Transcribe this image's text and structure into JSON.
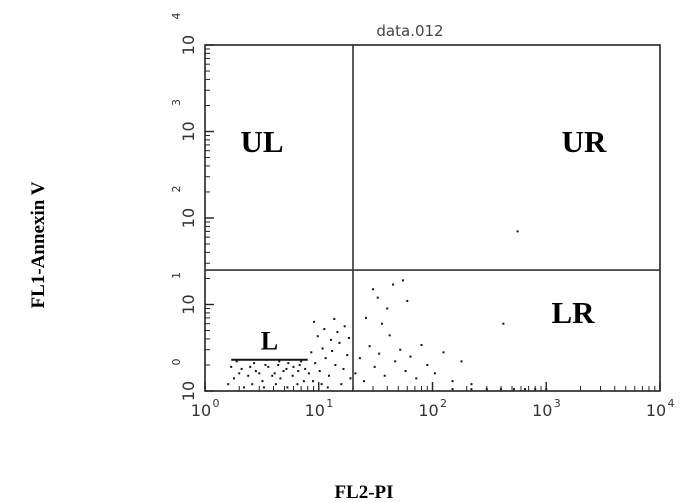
{
  "chart_data": {
    "type": "scatter",
    "title": "data.012",
    "xlabel": "FL2-PI",
    "ylabel": "FL1-Annexin V",
    "xscale": "log",
    "yscale": "log",
    "xlim": [
      1,
      10000
    ],
    "ylim": [
      1,
      10000
    ],
    "xticks": [
      {
        "base": "10",
        "exp": "0",
        "value": 1
      },
      {
        "base": "10",
        "exp": "1",
        "value": 10
      },
      {
        "base": "10",
        "exp": "2",
        "value": 100
      },
      {
        "base": "10",
        "exp": "3",
        "value": 1000
      },
      {
        "base": "10",
        "exp": "4",
        "value": 10000
      }
    ],
    "yticks": [
      {
        "base": "10",
        "exp": "0",
        "value": 1
      },
      {
        "base": "10",
        "exp": "1",
        "value": 10
      },
      {
        "base": "10",
        "exp": "2",
        "value": 100
      },
      {
        "base": "10",
        "exp": "3",
        "value": 1000
      },
      {
        "base": "10",
        "exp": "4",
        "value": 10000
      }
    ],
    "quadrant_divider": {
      "x": 20,
      "y": 25
    },
    "quadrant_labels": [
      "UL",
      "UR",
      "LR"
    ],
    "gate": {
      "label": "L",
      "x_range": [
        1.7,
        8
      ],
      "y_range": [
        2.3,
        13
      ]
    },
    "points": [
      {
        "x": 1.8,
        "y": 1.4
      },
      {
        "x": 2.1,
        "y": 1.8
      },
      {
        "x": 2.4,
        "y": 1.5
      },
      {
        "x": 2.8,
        "y": 1.7
      },
      {
        "x": 3.2,
        "y": 1.3
      },
      {
        "x": 3.6,
        "y": 1.9
      },
      {
        "x": 4.1,
        "y": 1.6
      },
      {
        "x": 4.6,
        "y": 1.4
      },
      {
        "x": 5.2,
        "y": 1.8
      },
      {
        "x": 5.9,
        "y": 1.5
      },
      {
        "x": 6.6,
        "y": 1.7
      },
      {
        "x": 7.4,
        "y": 1.3
      },
      {
        "x": 1.9,
        "y": 2.2
      },
      {
        "x": 2.3,
        "y": 2.5
      },
      {
        "x": 2.7,
        "y": 2.1
      },
      {
        "x": 3.1,
        "y": 2.6
      },
      {
        "x": 3.5,
        "y": 2.3
      },
      {
        "x": 4.0,
        "y": 2.4
      },
      {
        "x": 4.5,
        "y": 2.2
      },
      {
        "x": 5.0,
        "y": 2.6
      },
      {
        "x": 5.6,
        "y": 2.3
      },
      {
        "x": 6.3,
        "y": 2.5
      },
      {
        "x": 7.0,
        "y": 2.2
      },
      {
        "x": 7.8,
        "y": 2.4
      },
      {
        "x": 2.0,
        "y": 1.6
      },
      {
        "x": 2.5,
        "y": 1.9
      },
      {
        "x": 3.0,
        "y": 1.6
      },
      {
        "x": 3.4,
        "y": 2.0
      },
      {
        "x": 3.9,
        "y": 1.5
      },
      {
        "x": 4.4,
        "y": 2.0
      },
      {
        "x": 4.9,
        "y": 1.7
      },
      {
        "x": 5.4,
        "y": 2.1
      },
      {
        "x": 6.0,
        "y": 1.9
      },
      {
        "x": 6.8,
        "y": 2.0
      },
      {
        "x": 7.6,
        "y": 1.8
      },
      {
        "x": 8.2,
        "y": 1.6
      },
      {
        "x": 1.6,
        "y": 1.2
      },
      {
        "x": 1.7,
        "y": 1.9
      },
      {
        "x": 2.2,
        "y": 1.1
      },
      {
        "x": 2.6,
        "y": 1.2
      },
      {
        "x": 3.3,
        "y": 1.1
      },
      {
        "x": 4.2,
        "y": 1.2
      },
      {
        "x": 5.3,
        "y": 1.1
      },
      {
        "x": 6.5,
        "y": 1.2
      },
      {
        "x": 8.6,
        "y": 2.8
      },
      {
        "x": 9.3,
        "y": 2.1
      },
      {
        "x": 10.2,
        "y": 1.7
      },
      {
        "x": 10.8,
        "y": 3.1
      },
      {
        "x": 11.5,
        "y": 2.4
      },
      {
        "x": 12.3,
        "y": 1.5
      },
      {
        "x": 13.1,
        "y": 2.9
      },
      {
        "x": 14.0,
        "y": 2.0
      },
      {
        "x": 15.2,
        "y": 3.6
      },
      {
        "x": 16.5,
        "y": 1.8
      },
      {
        "x": 17.8,
        "y": 2.6
      },
      {
        "x": 19.0,
        "y": 1.4
      },
      {
        "x": 9.8,
        "y": 4.3
      },
      {
        "x": 11.2,
        "y": 5.2
      },
      {
        "x": 12.8,
        "y": 3.9
      },
      {
        "x": 14.6,
        "y": 4.8
      },
      {
        "x": 16.9,
        "y": 5.6
      },
      {
        "x": 18.4,
        "y": 4.1
      },
      {
        "x": 9.1,
        "y": 6.3
      },
      {
        "x": 13.7,
        "y": 6.8
      },
      {
        "x": 8.9,
        "y": 1.3
      },
      {
        "x": 10.6,
        "y": 1.2
      },
      {
        "x": 12.0,
        "y": 1.1
      },
      {
        "x": 15.8,
        "y": 1.2
      },
      {
        "x": 21,
        "y": 1.6
      },
      {
        "x": 23,
        "y": 2.4
      },
      {
        "x": 25,
        "y": 1.3
      },
      {
        "x": 28,
        "y": 3.3
      },
      {
        "x": 31,
        "y": 1.9
      },
      {
        "x": 34,
        "y": 2.7
      },
      {
        "x": 38,
        "y": 1.5
      },
      {
        "x": 42,
        "y": 4.4
      },
      {
        "x": 47,
        "y": 2.2
      },
      {
        "x": 52,
        "y": 3.0
      },
      {
        "x": 58,
        "y": 1.7
      },
      {
        "x": 64,
        "y": 2.5
      },
      {
        "x": 72,
        "y": 1.4
      },
      {
        "x": 80,
        "y": 3.4
      },
      {
        "x": 90,
        "y": 2.0
      },
      {
        "x": 105,
        "y": 1.6
      },
      {
        "x": 125,
        "y": 2.8
      },
      {
        "x": 150,
        "y": 1.3
      },
      {
        "x": 180,
        "y": 2.2
      },
      {
        "x": 220,
        "y": 1.2
      },
      {
        "x": 30,
        "y": 15
      },
      {
        "x": 33,
        "y": 12
      },
      {
        "x": 40,
        "y": 9
      },
      {
        "x": 45,
        "y": 17
      },
      {
        "x": 55,
        "y": 19
      },
      {
        "x": 60,
        "y": 11
      },
      {
        "x": 26,
        "y": 7
      },
      {
        "x": 36,
        "y": 6
      },
      {
        "x": 420,
        "y": 6
      },
      {
        "x": 560,
        "y": 70
      },
      {
        "x": 150,
        "y": 1.05
      },
      {
        "x": 220,
        "y": 1.05
      },
      {
        "x": 300,
        "y": 1.05
      },
      {
        "x": 400,
        "y": 1.05
      },
      {
        "x": 520,
        "y": 1.05
      },
      {
        "x": 650,
        "y": 1.05
      },
      {
        "x": 800,
        "y": 1.05
      },
      {
        "x": 1000,
        "y": 1.05
      }
    ]
  }
}
